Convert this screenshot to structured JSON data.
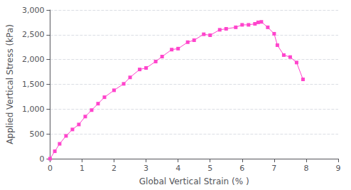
{
  "chart_data": {
    "type": "line",
    "xlabel": "Global Vertical Strain (% )",
    "ylabel": "Applied Vertical Stress (kPa)",
    "x": [
      0,
      0.15,
      0.3,
      0.5,
      0.7,
      0.9,
      1.1,
      1.3,
      1.5,
      1.7,
      2.0,
      2.3,
      2.5,
      2.8,
      3.0,
      3.3,
      3.5,
      3.8,
      4.0,
      4.3,
      4.5,
      4.8,
      5.0,
      5.3,
      5.5,
      5.8,
      6.0,
      6.2,
      6.4,
      6.5,
      6.6,
      6.8,
      7.0,
      7.1,
      7.3,
      7.5,
      7.7,
      7.9
    ],
    "values": [
      0,
      150,
      300,
      460,
      590,
      690,
      850,
      980,
      1110,
      1240,
      1380,
      1510,
      1640,
      1800,
      1830,
      1960,
      2060,
      2200,
      2220,
      2350,
      2390,
      2510,
      2490,
      2600,
      2620,
      2650,
      2700,
      2700,
      2720,
      2750,
      2760,
      2650,
      2520,
      2290,
      2090,
      2050,
      1940,
      1600
    ],
    "color": "#FF44CC",
    "marker": "square",
    "xlim": [
      0,
      9
    ],
    "ylim": [
      0,
      3000
    ],
    "xticks": [
      0,
      1,
      2,
      3,
      4,
      5,
      6,
      7,
      8,
      9
    ],
    "yticks": [
      0,
      500,
      {
        "value": 1000,
        "label": "1,000"
      },
      {
        "value": 1500,
        "label": "1,500"
      },
      {
        "value": 2000,
        "label": "2,000"
      },
      {
        "value": 2500,
        "label": "2,500"
      },
      {
        "value": 3000,
        "label": "3,000"
      }
    ],
    "grid": "y"
  }
}
